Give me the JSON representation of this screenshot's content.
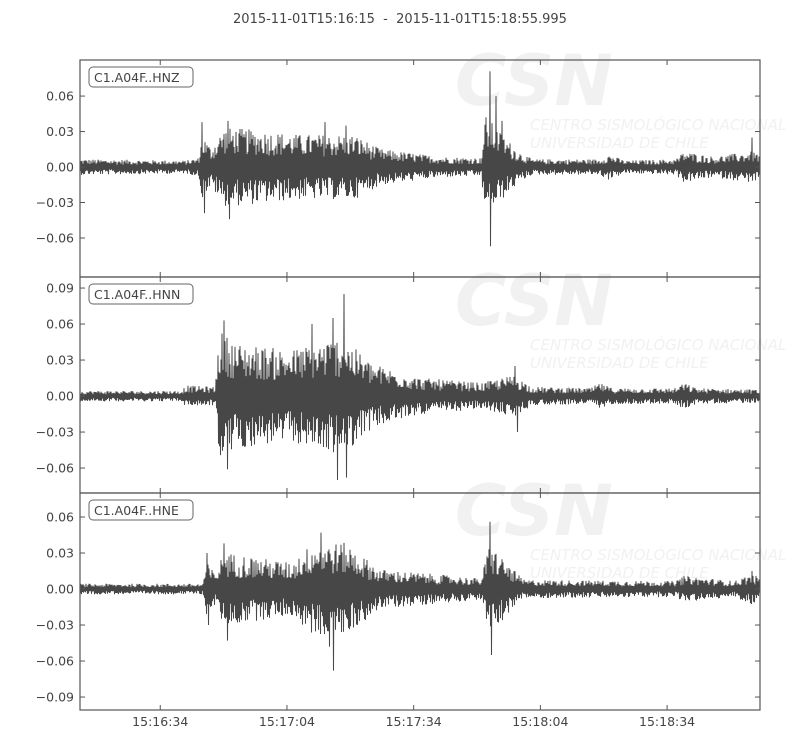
{
  "title": "2015-11-01T15:16:15  -  2015-11-01T15:18:55.995",
  "watermark": {
    "logo": "CSN",
    "line1": "CENTRO SISMOLÓGICO NACIONAL",
    "line2": "UNIVERSIDAD DE CHILE"
  },
  "colors": {
    "trace": "#474747",
    "axes": "#555555"
  },
  "chart_data": {
    "type": "line",
    "title": "2015-11-01T15:16:15  -  2015-11-01T15:18:55.995",
    "xlim": [
      "15:16:15",
      "15:18:56"
    ],
    "xticks": [
      "15:16:34",
      "15:17:04",
      "15:17:34",
      "15:18:04",
      "15:18:34"
    ],
    "grid": false,
    "panels": [
      {
        "name": "C1.A04F..HNZ",
        "ylim": [
          -0.093,
          0.0905
        ],
        "yticks": [
          "0.06",
          "0.03",
          "0.00",
          "−0.03",
          "−0.06"
        ],
        "ytick_values": [
          0.06,
          0.03,
          0,
          -0.03,
          -0.06
        ],
        "envelope": [
          [
            "15:16:15",
            0.006
          ],
          [
            "15:16:40",
            0.005
          ],
          [
            "15:16:43",
            0.007
          ],
          [
            "15:16:44",
            0.025
          ],
          [
            "15:16:46",
            0.015
          ],
          [
            "15:16:49",
            0.03
          ],
          [
            "15:16:52",
            0.03
          ],
          [
            "15:17:07",
            0.025
          ],
          [
            "15:17:20",
            0.025
          ],
          [
            "15:17:26",
            0.014
          ],
          [
            "15:17:40",
            0.008
          ],
          [
            "15:17:50",
            0.007
          ],
          [
            "15:17:51",
            0.04
          ],
          [
            "15:17:55",
            0.025
          ],
          [
            "15:17:59",
            0.012
          ],
          [
            "15:18:02",
            0.006
          ],
          [
            "15:18:18",
            0.006
          ],
          [
            "15:18:20",
            0.01
          ],
          [
            "15:18:24",
            0.005
          ],
          [
            "15:18:36",
            0.006
          ],
          [
            "15:18:38",
            0.012
          ],
          [
            "15:18:45",
            0.008
          ],
          [
            "15:18:54",
            0.012
          ],
          [
            "15:18:56",
            0.01
          ]
        ],
        "peaks": [
          [
            "15:16:44",
            0.038
          ],
          [
            "15:16:44.5",
            -0.039
          ],
          [
            "15:16:50",
            0.039
          ],
          [
            "15:16:50.5",
            -0.044
          ],
          [
            "15:17:13",
            0.038
          ],
          [
            "15:17:18",
            0.035
          ],
          [
            "15:17:52",
            0.081
          ],
          [
            "15:17:52.3",
            -0.067
          ],
          [
            "15:17:53.5",
            0.06
          ],
          [
            "15:17:55",
            0.039
          ],
          [
            "15:18:54",
            0.025
          ]
        ]
      },
      {
        "name": "C1.A04F..HNN",
        "ylim": [
          -0.0808,
          0.0992
        ],
        "yticks": [
          "0.09",
          "0.06",
          "0.03",
          "0.00",
          "−0.03",
          "−0.06"
        ],
        "ytick_values": [
          0.09,
          0.06,
          0.03,
          0,
          -0.03,
          -0.06
        ],
        "envelope": [
          [
            "15:16:15",
            0.004
          ],
          [
            "15:16:39",
            0.004
          ],
          [
            "15:16:40",
            0.008
          ],
          [
            "15:16:47",
            0.007
          ],
          [
            "15:16:48",
            0.05
          ],
          [
            "15:16:52",
            0.04
          ],
          [
            "15:17:05",
            0.035
          ],
          [
            "15:17:17",
            0.045
          ],
          [
            "15:17:24",
            0.025
          ],
          [
            "15:17:35",
            0.014
          ],
          [
            "15:17:50",
            0.01
          ],
          [
            "15:17:58",
            0.016
          ],
          [
            "15:18:02",
            0.007
          ],
          [
            "15:18:16",
            0.006
          ],
          [
            "15:18:18",
            0.01
          ],
          [
            "15:18:21",
            0.006
          ],
          [
            "15:18:36",
            0.006
          ],
          [
            "15:18:38",
            0.01
          ],
          [
            "15:18:41",
            0.006
          ],
          [
            "15:18:56",
            0.005
          ]
        ],
        "peaks": [
          [
            "15:16:49",
            0.063
          ],
          [
            "15:16:50",
            -0.061
          ],
          [
            "15:17:10",
            0.06
          ],
          [
            "15:17:15",
            0.065
          ],
          [
            "15:17:16",
            -0.07
          ],
          [
            "15:17:17.5",
            0.085
          ],
          [
            "15:17:18",
            -0.068
          ],
          [
            "15:17:58",
            0.025
          ],
          [
            "15:17:58.5",
            -0.03
          ]
        ]
      },
      {
        "name": "C1.A04F..HNE",
        "ylim": [
          -0.1008,
          0.08
        ],
        "yticks": [
          "0.06",
          "0.03",
          "0.00",
          "−0.03",
          "−0.06",
          "−0.09"
        ],
        "ytick_values": [
          0.06,
          0.03,
          0,
          -0.03,
          -0.06,
          -0.09
        ],
        "envelope": [
          [
            "15:16:15",
            0.004
          ],
          [
            "15:16:44",
            0.004
          ],
          [
            "15:16:45",
            0.02
          ],
          [
            "15:16:47",
            0.012
          ],
          [
            "15:16:49",
            0.028
          ],
          [
            "15:17:05",
            0.02
          ],
          [
            "15:17:10",
            0.035
          ],
          [
            "15:17:18",
            0.035
          ],
          [
            "15:17:26",
            0.015
          ],
          [
            "15:17:50",
            0.008
          ],
          [
            "15:17:52",
            0.035
          ],
          [
            "15:17:56",
            0.02
          ],
          [
            "15:18:00",
            0.007
          ],
          [
            "15:18:36",
            0.006
          ],
          [
            "15:18:38",
            0.01
          ],
          [
            "15:18:50",
            0.006
          ],
          [
            "15:18:54",
            0.012
          ],
          [
            "15:18:56",
            0.008
          ]
        ],
        "peaks": [
          [
            "15:16:45",
            0.03
          ],
          [
            "15:16:45.5",
            -0.03
          ],
          [
            "15:16:49",
            0.038
          ],
          [
            "15:16:50",
            -0.043
          ],
          [
            "15:17:12",
            0.047
          ],
          [
            "15:17:14",
            -0.048
          ],
          [
            "15:17:15",
            -0.068
          ],
          [
            "15:17:52",
            0.056
          ],
          [
            "15:17:52.5",
            -0.055
          ],
          [
            "15:18:54",
            0.015
          ]
        ]
      }
    ]
  }
}
